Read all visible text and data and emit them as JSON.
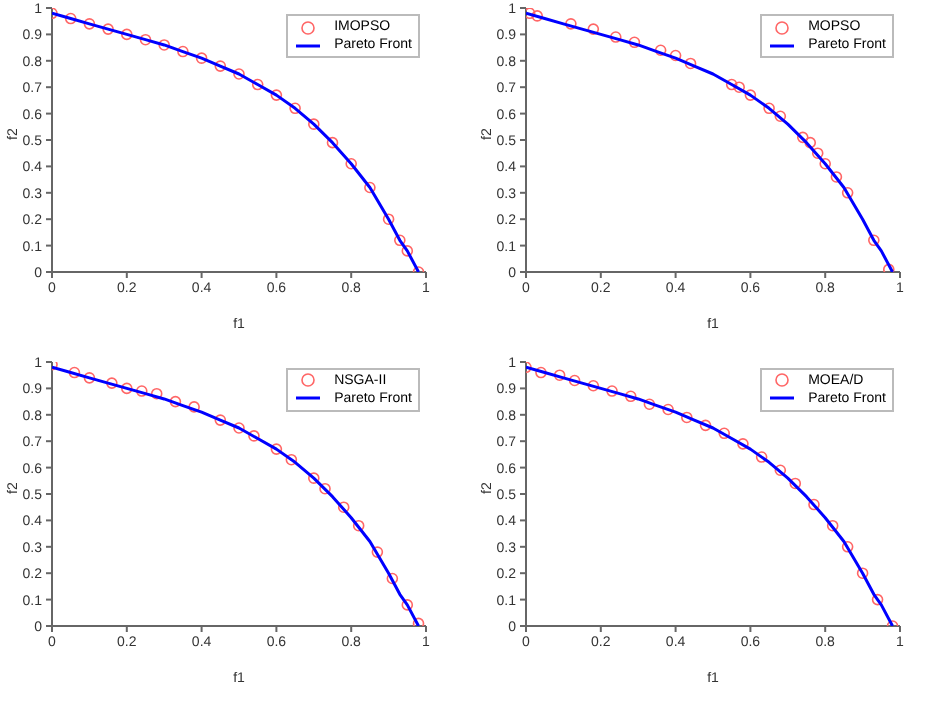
{
  "chart_data": [
    {
      "type": "scatter",
      "xlabel": "f1",
      "ylabel": "f2",
      "xlim": [
        0,
        1
      ],
      "ylim": [
        0,
        1
      ],
      "xticks": [
        0,
        0.2,
        0.4,
        0.6,
        0.8,
        1
      ],
      "yticks": [
        0,
        0.1,
        0.2,
        0.3,
        0.4,
        0.5,
        0.6,
        0.7,
        0.8,
        0.9,
        1
      ],
      "legend": "top right",
      "grid": false,
      "series": [
        {
          "name": "IMOPSO",
          "marker": "circle",
          "color": "#ff6666",
          "x": [
            0,
            0.05,
            0.1,
            0.15,
            0.2,
            0.25,
            0.3,
            0.35,
            0.4,
            0.45,
            0.5,
            0.55,
            0.6,
            0.65,
            0.7,
            0.75,
            0.8,
            0.85,
            0.9,
            0.93,
            0.95,
            0.98
          ],
          "values": [
            0.98,
            0.96,
            0.94,
            0.92,
            0.9,
            0.88,
            0.86,
            0.835,
            0.81,
            0.78,
            0.75,
            0.71,
            0.67,
            0.62,
            0.56,
            0.49,
            0.41,
            0.32,
            0.2,
            0.12,
            0.08,
            0
          ]
        },
        {
          "name": "Pareto Front",
          "type": "line",
          "color": "#0000ff",
          "x": [
            0,
            0.05,
            0.1,
            0.15,
            0.2,
            0.25,
            0.3,
            0.35,
            0.4,
            0.45,
            0.5,
            0.55,
            0.6,
            0.65,
            0.7,
            0.75,
            0.8,
            0.85,
            0.9,
            0.93,
            0.95,
            0.98
          ],
          "values": [
            0.98,
            0.96,
            0.94,
            0.92,
            0.9,
            0.88,
            0.86,
            0.835,
            0.81,
            0.78,
            0.75,
            0.71,
            0.67,
            0.62,
            0.56,
            0.49,
            0.41,
            0.32,
            0.2,
            0.12,
            0.08,
            0
          ]
        }
      ]
    },
    {
      "type": "scatter",
      "xlabel": "f1",
      "ylabel": "f2",
      "xlim": [
        0,
        1
      ],
      "ylim": [
        0,
        1
      ],
      "xticks": [
        0,
        0.2,
        0.4,
        0.6,
        0.8,
        1
      ],
      "yticks": [
        0,
        0.1,
        0.2,
        0.3,
        0.4,
        0.5,
        0.6,
        0.7,
        0.8,
        0.9,
        1
      ],
      "legend": "top right",
      "grid": false,
      "series": [
        {
          "name": "MOPSO",
          "marker": "circle",
          "color": "#ff6666",
          "x": [
            0.01,
            0.03,
            0.12,
            0.18,
            0.24,
            0.29,
            0.36,
            0.4,
            0.44,
            0.55,
            0.57,
            0.6,
            0.65,
            0.68,
            0.74,
            0.76,
            0.78,
            0.8,
            0.83,
            0.86,
            0.93,
            0.97
          ],
          "values": [
            0.98,
            0.97,
            0.94,
            0.92,
            0.89,
            0.87,
            0.84,
            0.82,
            0.79,
            0.71,
            0.7,
            0.67,
            0.62,
            0.59,
            0.51,
            0.49,
            0.45,
            0.41,
            0.36,
            0.3,
            0.12,
            0.01
          ]
        },
        {
          "name": "Pareto Front",
          "type": "line",
          "color": "#0000ff",
          "x": [
            0,
            0.05,
            0.1,
            0.15,
            0.2,
            0.25,
            0.3,
            0.35,
            0.4,
            0.45,
            0.5,
            0.55,
            0.6,
            0.65,
            0.7,
            0.75,
            0.8,
            0.85,
            0.9,
            0.93,
            0.95,
            0.98
          ],
          "values": [
            0.98,
            0.96,
            0.94,
            0.92,
            0.9,
            0.88,
            0.86,
            0.835,
            0.81,
            0.78,
            0.75,
            0.71,
            0.67,
            0.62,
            0.56,
            0.49,
            0.41,
            0.32,
            0.2,
            0.12,
            0.08,
            0
          ]
        }
      ]
    },
    {
      "type": "scatter",
      "xlabel": "f1",
      "ylabel": "f2",
      "xlim": [
        0,
        1
      ],
      "ylim": [
        0,
        1
      ],
      "xticks": [
        0,
        0.2,
        0.4,
        0.6,
        0.8,
        1
      ],
      "yticks": [
        0,
        0.1,
        0.2,
        0.3,
        0.4,
        0.5,
        0.6,
        0.7,
        0.8,
        0.9,
        1
      ],
      "legend": "top right",
      "grid": false,
      "series": [
        {
          "name": "NSGA-II",
          "marker": "circle",
          "color": "#ff6666",
          "x": [
            0,
            0.06,
            0.1,
            0.16,
            0.2,
            0.24,
            0.28,
            0.33,
            0.38,
            0.45,
            0.5,
            0.54,
            0.6,
            0.64,
            0.7,
            0.73,
            0.78,
            0.82,
            0.87,
            0.91,
            0.95,
            0.98
          ],
          "values": [
            0.99,
            0.96,
            0.94,
            0.92,
            0.9,
            0.89,
            0.88,
            0.85,
            0.83,
            0.78,
            0.75,
            0.72,
            0.67,
            0.63,
            0.56,
            0.52,
            0.45,
            0.38,
            0.28,
            0.18,
            0.08,
            0.01
          ]
        },
        {
          "name": "Pareto Front",
          "type": "line",
          "color": "#0000ff",
          "x": [
            0,
            0.05,
            0.1,
            0.15,
            0.2,
            0.25,
            0.3,
            0.35,
            0.4,
            0.45,
            0.5,
            0.55,
            0.6,
            0.65,
            0.7,
            0.75,
            0.8,
            0.85,
            0.9,
            0.93,
            0.95,
            0.98
          ],
          "values": [
            0.98,
            0.96,
            0.94,
            0.92,
            0.9,
            0.88,
            0.86,
            0.835,
            0.81,
            0.78,
            0.75,
            0.71,
            0.67,
            0.62,
            0.56,
            0.49,
            0.41,
            0.32,
            0.2,
            0.12,
            0.08,
            0
          ]
        }
      ]
    },
    {
      "type": "scatter",
      "xlabel": "f1",
      "ylabel": "f2",
      "xlim": [
        0,
        1
      ],
      "ylim": [
        0,
        1
      ],
      "xticks": [
        0,
        0.2,
        0.4,
        0.6,
        0.8,
        1
      ],
      "yticks": [
        0,
        0.1,
        0.2,
        0.3,
        0.4,
        0.5,
        0.6,
        0.7,
        0.8,
        0.9,
        1
      ],
      "legend": "top right",
      "grid": false,
      "series": [
        {
          "name": "MOEA/D",
          "marker": "circle",
          "color": "#ff6666",
          "x": [
            0,
            0.04,
            0.09,
            0.13,
            0.18,
            0.23,
            0.28,
            0.33,
            0.38,
            0.43,
            0.48,
            0.53,
            0.58,
            0.63,
            0.68,
            0.72,
            0.77,
            0.82,
            0.86,
            0.9,
            0.94,
            0.98
          ],
          "values": [
            0.98,
            0.96,
            0.95,
            0.93,
            0.91,
            0.89,
            0.87,
            0.84,
            0.82,
            0.79,
            0.76,
            0.73,
            0.69,
            0.64,
            0.59,
            0.54,
            0.46,
            0.38,
            0.3,
            0.2,
            0.1,
            0
          ]
        },
        {
          "name": "Pareto Front",
          "type": "line",
          "color": "#0000ff",
          "x": [
            0,
            0.05,
            0.1,
            0.15,
            0.2,
            0.25,
            0.3,
            0.35,
            0.4,
            0.45,
            0.5,
            0.55,
            0.6,
            0.65,
            0.7,
            0.75,
            0.8,
            0.85,
            0.9,
            0.93,
            0.95,
            0.98
          ],
          "values": [
            0.98,
            0.96,
            0.94,
            0.92,
            0.9,
            0.88,
            0.86,
            0.835,
            0.81,
            0.78,
            0.75,
            0.71,
            0.67,
            0.62,
            0.56,
            0.49,
            0.41,
            0.32,
            0.2,
            0.12,
            0.08,
            0
          ]
        }
      ]
    }
  ]
}
